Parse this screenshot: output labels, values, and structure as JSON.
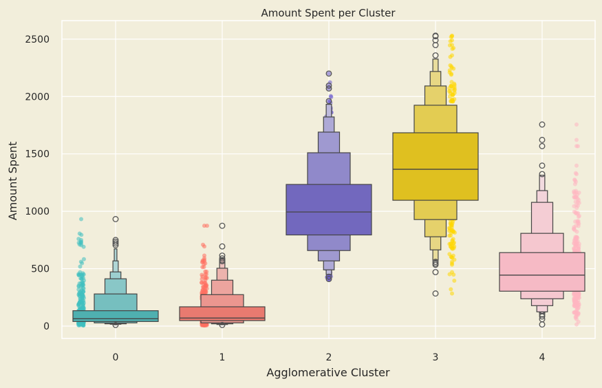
{
  "chart_data": {
    "type": "boxen",
    "title": "Amount Spent per Cluster",
    "xlabel": "Agglomerative Cluster",
    "ylabel": "Amount Spent",
    "ylim": [
      -110,
      2650
    ],
    "yticks": [
      0,
      500,
      1000,
      1500,
      2000,
      2500
    ],
    "grid": true,
    "background_color": "#F2EEDB",
    "categories": [
      "0",
      "1",
      "2",
      "3",
      "4"
    ],
    "series": [
      {
        "category": "0",
        "color": "#40C0C0",
        "box_color": "#4FB0B0",
        "median": 64,
        "levels": [
          [
            40,
            134
          ],
          [
            28,
            280
          ],
          [
            20,
            412
          ],
          [
            16,
            472
          ],
          [
            14,
            568
          ],
          [
            12,
            672
          ]
        ],
        "outliers": [
          932,
          750,
          735,
          720,
          705,
          10
        ],
        "min": 5,
        "max": 932
      },
      {
        "category": "1",
        "color": "#FF6F61",
        "box_color": "#E97A70",
        "median": 70,
        "levels": [
          [
            48,
            168
          ],
          [
            28,
            274
          ],
          [
            20,
            400
          ],
          [
            14,
            504
          ],
          [
            12,
            582
          ]
        ],
        "outliers": [
          874,
          694,
          614,
          590,
          575,
          565,
          10
        ],
        "min": 5,
        "max": 874
      },
      {
        "category": "2",
        "color": "#6A5ACD",
        "box_color": "#7268BE",
        "median": 994,
        "levels": [
          [
            794,
            1234
          ],
          [
            658,
            1510
          ],
          [
            568,
            1690
          ],
          [
            490,
            1822
          ],
          [
            450,
            1932
          ]
        ],
        "outliers": [
          2200,
          2095,
          2070,
          1960,
          430,
          410
        ],
        "min": 405,
        "max": 2200
      },
      {
        "category": "3",
        "color": "#FFD700",
        "box_color": "#DFC020",
        "median": 1366,
        "levels": [
          [
            1096,
            1684
          ],
          [
            928,
            1924
          ],
          [
            778,
            2092
          ],
          [
            664,
            2218
          ],
          [
            574,
            2326
          ]
        ],
        "outliers": [
          2530,
          2525,
          2490,
          2448,
          2358,
          560,
          545,
          534,
          470,
          284
        ],
        "min": 280,
        "max": 2530
      },
      {
        "category": "4",
        "color": "#FFB6C1",
        "box_color": "#F6BAC5",
        "median": 444,
        "levels": [
          [
            304,
            640
          ],
          [
            238,
            808
          ],
          [
            178,
            1078
          ],
          [
            124,
            1180
          ],
          [
            110,
            1314
          ]
        ],
        "outliers": [
          1756,
          1622,
          1568,
          1398,
          1324,
          100,
          84,
          60,
          14
        ],
        "min": 14,
        "max": 1756
      }
    ]
  }
}
